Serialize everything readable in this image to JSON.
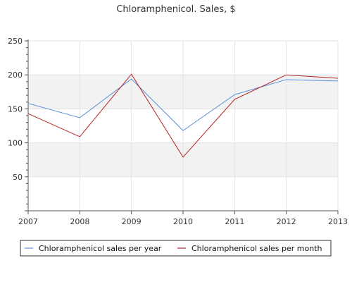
{
  "chart_data": {
    "type": "line",
    "title": "Chloramphenicol. Sales, $",
    "xlabel": "",
    "ylabel": "",
    "x": [
      "2007",
      "2008",
      "2009",
      "2010",
      "2011",
      "2012",
      "2013"
    ],
    "ylim": [
      0,
      250
    ],
    "yticks": [
      50,
      100,
      150,
      200,
      250
    ],
    "grid": true,
    "legend": "bottom",
    "series": [
      {
        "name": "Chloramphenicol sales per year",
        "color": "#5b8fd9",
        "values": [
          158,
          137,
          194,
          118,
          171,
          193,
          191
        ]
      },
      {
        "name": "Chloramphenicol sales per month",
        "color": "#b22222",
        "values": [
          143,
          109,
          201,
          79,
          164,
          200,
          195
        ]
      }
    ]
  }
}
